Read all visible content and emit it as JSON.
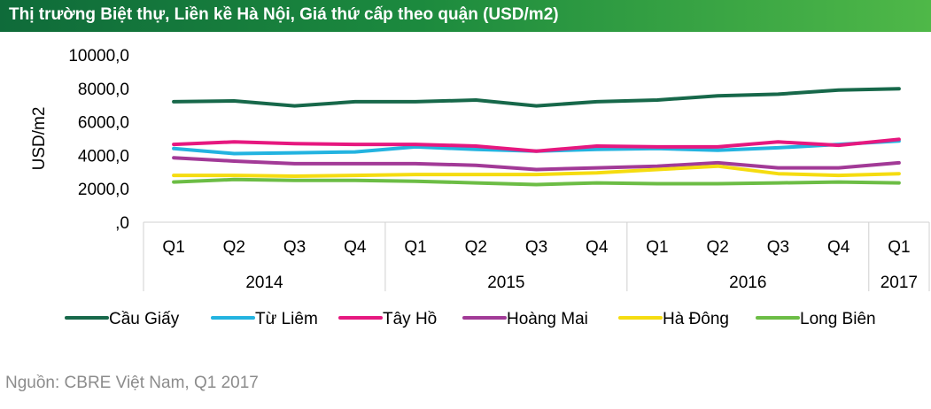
{
  "title": "Thị trường Biệt thự, Liền kề Hà Nội, Giá thứ cấp theo quận (USD/m2)",
  "source": "Nguồn: CBRE Việt Nam, Q1 2017",
  "chart_data": {
    "type": "line",
    "ylabel": "USD/m2",
    "ylim": [
      0,
      10000
    ],
    "yticks": [
      0,
      2000,
      4000,
      6000,
      8000,
      10000
    ],
    "ytick_labels": [
      ",0",
      "2000,0",
      "4000,0",
      "6000,0",
      "8000,0",
      "10000,0"
    ],
    "categories": [
      "Q1",
      "Q2",
      "Q3",
      "Q4",
      "Q1",
      "Q2",
      "Q3",
      "Q4",
      "Q1",
      "Q2",
      "Q3",
      "Q4",
      "Q1"
    ],
    "years": [
      {
        "label": "2014",
        "span": 4
      },
      {
        "label": "2015",
        "span": 4
      },
      {
        "label": "2016",
        "span": 4
      },
      {
        "label": "2017",
        "span": 1
      }
    ],
    "grid": "horizontal",
    "legend_position": "bottom",
    "series": [
      {
        "name": "Cầu Giấy",
        "color": "#17684a",
        "values": [
          7200,
          7250,
          6950,
          7200,
          7200,
          7300,
          6950,
          7200,
          7300,
          7550,
          7650,
          7900,
          7980
        ]
      },
      {
        "name": "Từ Liêm",
        "color": "#23b3e0",
        "values": [
          4400,
          4100,
          4150,
          4200,
          4500,
          4350,
          4250,
          4350,
          4400,
          4300,
          4450,
          4650,
          4850
        ]
      },
      {
        "name": "Tây Hồ",
        "color": "#e6187f",
        "values": [
          4650,
          4800,
          4700,
          4650,
          4650,
          4550,
          4250,
          4550,
          4500,
          4500,
          4800,
          4600,
          4950
        ]
      },
      {
        "name": "Hoàng Mai",
        "color": "#a23a97",
        "values": [
          3850,
          3650,
          3500,
          3500,
          3500,
          3400,
          3150,
          3250,
          3350,
          3550,
          3250,
          3250,
          3550
        ]
      },
      {
        "name": "Hà Đông",
        "color": "#f5dc10",
        "values": [
          2800,
          2800,
          2750,
          2800,
          2850,
          2850,
          2850,
          2950,
          3150,
          3350,
          2900,
          2800,
          2900
        ]
      },
      {
        "name": "Long Biên",
        "color": "#6cbd45",
        "values": [
          2400,
          2550,
          2500,
          2500,
          2450,
          2350,
          2250,
          2350,
          2300,
          2300,
          2350,
          2400,
          2350
        ]
      }
    ]
  }
}
